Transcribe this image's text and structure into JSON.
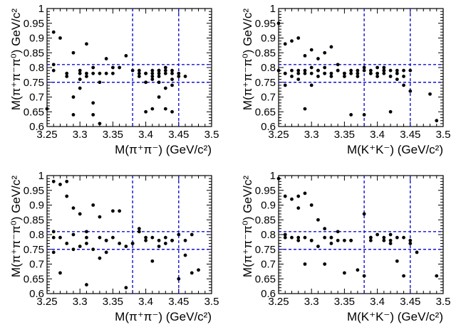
{
  "chart_data": [
    {
      "type": "scatter",
      "xlabel": "M(π⁺π⁻) (GeV/c²)",
      "ylabel": "M(π⁺π⁻π⁰) GeV/c²",
      "xlim": [
        3.25,
        3.5
      ],
      "ylim": [
        0.6,
        1.0
      ],
      "xticks": [
        "3.25",
        "3.3",
        "3.35",
        "3.4",
        "3.45",
        "3.5"
      ],
      "yticks": [
        "0.6",
        "0.65",
        "0.7",
        "0.75",
        "0.8",
        "0.85",
        "0.9",
        "0.95",
        "1"
      ],
      "cut_lines_x": [
        3.38,
        3.45
      ],
      "cut_lines_y": [
        0.75,
        0.81
      ],
      "x": [
        3.25,
        3.26,
        3.26,
        3.26,
        3.27,
        3.28,
        3.28,
        3.29,
        3.29,
        3.29,
        3.3,
        3.3,
        3.3,
        3.3,
        3.31,
        3.31,
        3.31,
        3.32,
        3.32,
        3.32,
        3.32,
        3.33,
        3.33,
        3.33,
        3.34,
        3.34,
        3.35,
        3.35,
        3.36,
        3.37,
        3.38,
        3.39,
        3.39,
        3.39,
        3.4,
        3.4,
        3.4,
        3.41,
        3.41,
        3.41,
        3.41,
        3.42,
        3.42,
        3.42,
        3.42,
        3.42,
        3.43,
        3.43,
        3.43,
        3.43,
        3.44,
        3.44,
        3.44,
        3.44,
        3.45,
        3.46,
        3.4,
        3.41,
        3.42,
        3.43,
        3.44,
        3.45
      ],
      "y": [
        0.66,
        0.92,
        0.81,
        0.79,
        0.9,
        0.78,
        0.77,
        0.85,
        0.7,
        0.64,
        0.76,
        0.78,
        0.79,
        0.73,
        0.88,
        0.78,
        0.77,
        0.78,
        0.8,
        0.68,
        0.64,
        0.78,
        0.75,
        0.61,
        0.83,
        0.78,
        0.78,
        0.8,
        0.8,
        0.84,
        0.79,
        0.77,
        0.79,
        0.78,
        0.65,
        0.78,
        0.75,
        0.79,
        0.76,
        0.66,
        0.78,
        0.78,
        0.75,
        0.7,
        0.79,
        0.77,
        0.78,
        0.79,
        0.73,
        0.66,
        0.78,
        0.79,
        0.76,
        0.65,
        0.77,
        0.77,
        0.78,
        0.77,
        0.79,
        0.8,
        0.74,
        0.78
      ]
    },
    {
      "type": "scatter",
      "xlabel": "M(K⁺K⁻) (GeV/c²)",
      "ylabel": "M(π⁺π⁻π⁰) GeV/c²",
      "xlim": [
        3.25,
        3.5
      ],
      "ylim": [
        0.6,
        1.0
      ],
      "xticks": [
        "3.25",
        "3.3",
        "3.35",
        "3.4",
        "3.45",
        "3.5"
      ],
      "yticks": [
        "0.6",
        "0.65",
        "0.7",
        "0.75",
        "0.8",
        "0.85",
        "0.9",
        "0.95",
        "1"
      ],
      "cut_lines_x": [
        3.38,
        3.45
      ],
      "cut_lines_y": [
        0.75,
        0.81
      ],
      "x": [
        3.25,
        3.25,
        3.26,
        3.26,
        3.26,
        3.27,
        3.27,
        3.27,
        3.28,
        3.28,
        3.28,
        3.29,
        3.29,
        3.29,
        3.3,
        3.3,
        3.3,
        3.31,
        3.31,
        3.31,
        3.32,
        3.32,
        3.33,
        3.33,
        3.34,
        3.34,
        3.35,
        3.35,
        3.36,
        3.36,
        3.37,
        3.37,
        3.38,
        3.38,
        3.38,
        3.39,
        3.39,
        3.4,
        3.4,
        3.4,
        3.41,
        3.41,
        3.41,
        3.42,
        3.42,
        3.42,
        3.43,
        3.43,
        3.43,
        3.44,
        3.44,
        3.44,
        3.45,
        3.48,
        3.49,
        3.29,
        3.31,
        3.33,
        3.35,
        3.37,
        3.39,
        3.41,
        3.43,
        3.45,
        3.26,
        3.28,
        3.3,
        3.32,
        3.34,
        3.36,
        3.32
      ],
      "y": [
        0.95,
        0.79,
        0.88,
        0.78,
        0.74,
        0.89,
        0.79,
        0.77,
        0.9,
        0.78,
        0.76,
        0.84,
        0.79,
        0.66,
        0.86,
        0.78,
        0.74,
        0.83,
        0.79,
        0.77,
        0.85,
        0.78,
        0.87,
        0.77,
        0.81,
        0.79,
        0.77,
        0.78,
        0.79,
        0.64,
        0.78,
        0.77,
        0.79,
        0.64,
        0.8,
        0.78,
        0.79,
        0.8,
        0.78,
        0.77,
        0.79,
        0.78,
        0.8,
        0.77,
        0.79,
        0.65,
        0.79,
        0.78,
        0.76,
        0.79,
        0.77,
        0.74,
        0.72,
        0.71,
        0.62,
        0.78,
        0.79,
        0.78,
        0.78,
        0.79,
        0.78,
        0.79,
        0.78,
        0.79,
        0.78,
        0.79,
        0.8,
        0.78,
        0.79,
        0.78,
        0.8
      ]
    },
    {
      "type": "scatter",
      "xlabel": "M(π⁺π⁻) (GeV/c²)",
      "ylabel": "M(π⁺π⁻π⁰) GeV/c²",
      "xlim": [
        3.25,
        3.5
      ],
      "ylim": [
        0.6,
        1.0
      ],
      "xticks": [
        "3.25",
        "3.3",
        "3.35",
        "3.4",
        "3.45",
        "3.5"
      ],
      "yticks": [
        "0.6",
        "0.65",
        "0.7",
        "0.75",
        "0.8",
        "0.85",
        "0.9",
        "0.95",
        "1"
      ],
      "cut_lines_x": [
        3.38,
        3.45
      ],
      "cut_lines_y": [
        0.75,
        0.81
      ],
      "x": [
        3.26,
        3.26,
        3.26,
        3.27,
        3.27,
        3.28,
        3.28,
        3.28,
        3.29,
        3.29,
        3.3,
        3.3,
        3.31,
        3.31,
        3.31,
        3.32,
        3.32,
        3.33,
        3.33,
        3.33,
        3.34,
        3.34,
        3.35,
        3.35,
        3.36,
        3.37,
        3.38,
        3.38,
        3.39,
        3.39,
        3.4,
        3.4,
        3.41,
        3.41,
        3.42,
        3.42,
        3.43,
        3.43,
        3.44,
        3.44,
        3.45,
        3.45,
        3.46,
        3.46,
        3.47,
        3.47,
        3.48,
        3.26,
        3.27,
        3.29,
        3.31,
        3.34,
        3.36,
        3.37
      ],
      "y": [
        0.98,
        0.81,
        0.79,
        0.97,
        0.67,
        0.98,
        0.93,
        0.77,
        0.89,
        0.8,
        0.76,
        0.87,
        0.81,
        0.63,
        0.77,
        0.9,
        0.75,
        0.79,
        0.86,
        0.72,
        0.78,
        0.74,
        0.88,
        0.79,
        0.88,
        0.62,
        0.77,
        0.77,
        0.81,
        0.82,
        0.78,
        0.79,
        0.79,
        0.71,
        0.78,
        0.76,
        0.79,
        0.77,
        0.78,
        0.78,
        0.65,
        0.8,
        0.78,
        0.73,
        0.67,
        0.8,
        0.68,
        0.74,
        0.79,
        0.75,
        0.79,
        0.78,
        0.77,
        0.76
      ]
    },
    {
      "type": "scatter",
      "xlabel": "M(K⁺K⁻) (GeV/c²)",
      "ylabel": "M(π⁺π⁻π⁰) GeV/c²",
      "xlim": [
        3.25,
        3.5
      ],
      "ylim": [
        0.6,
        1.0
      ],
      "xticks": [
        "3.25",
        "3.3",
        "3.35",
        "3.4",
        "3.45",
        "3.5"
      ],
      "yticks": [
        "0.6",
        "0.65",
        "0.7",
        "0.75",
        "0.8",
        "0.85",
        "0.9",
        "0.95",
        "1"
      ],
      "cut_lines_x": [
        3.38,
        3.45
      ],
      "cut_lines_y": [
        0.75,
        0.81
      ],
      "x": [
        3.25,
        3.26,
        3.26,
        3.27,
        3.27,
        3.28,
        3.28,
        3.28,
        3.29,
        3.29,
        3.29,
        3.3,
        3.3,
        3.31,
        3.31,
        3.32,
        3.32,
        3.32,
        3.33,
        3.33,
        3.34,
        3.34,
        3.35,
        3.35,
        3.36,
        3.37,
        3.38,
        3.38,
        3.39,
        3.39,
        3.4,
        3.41,
        3.41,
        3.42,
        3.42,
        3.43,
        3.43,
        3.44,
        3.44,
        3.45,
        3.45,
        3.46,
        3.49,
        3.26,
        3.28,
        3.3,
        3.33,
        3.36,
        3.39,
        3.42
      ],
      "y": [
        0.99,
        0.93,
        0.79,
        0.92,
        0.79,
        0.93,
        0.78,
        0.89,
        0.94,
        0.79,
        0.7,
        0.9,
        0.78,
        0.85,
        0.76,
        0.82,
        0.79,
        0.7,
        0.79,
        0.77,
        0.81,
        0.78,
        0.78,
        0.67,
        0.78,
        0.68,
        0.87,
        0.66,
        0.79,
        0.78,
        0.8,
        0.78,
        0.79,
        0.78,
        0.77,
        0.79,
        0.71,
        0.79,
        0.66,
        0.78,
        0.77,
        0.74,
        0.66,
        0.8,
        0.79,
        0.78,
        0.79,
        0.78,
        0.79,
        0.8
      ]
    }
  ]
}
